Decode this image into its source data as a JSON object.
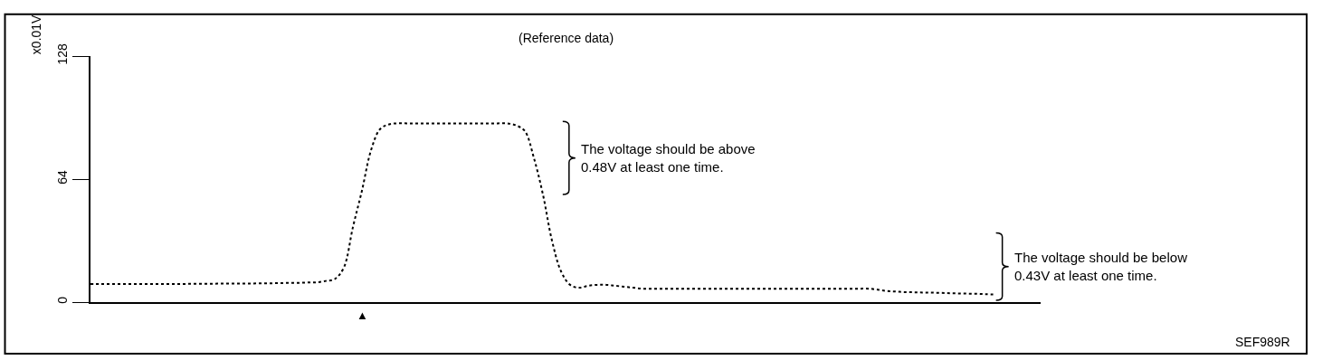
{
  "chart_data": {
    "type": "line",
    "title": "(Reference data)",
    "ylabel": "x0.01V",
    "categories": [
      null,
      null,
      null,
      null,
      null,
      null,
      null,
      null,
      null,
      null,
      null,
      null,
      null,
      null,
      null,
      null,
      null,
      null,
      null,
      null,
      null,
      null,
      null,
      null,
      null,
      null,
      null,
      null,
      null,
      null,
      null,
      null,
      null,
      null,
      null,
      null,
      null,
      null,
      null,
      null,
      null,
      null,
      null,
      null,
      null,
      null,
      null,
      null,
      null,
      null,
      null,
      null,
      null,
      null,
      null,
      null,
      null,
      null,
      null,
      null,
      null,
      null,
      null,
      null,
      null,
      null,
      null,
      null,
      null,
      null,
      null,
      null,
      null,
      null,
      null,
      null,
      null,
      null,
      null,
      null,
      null,
      null,
      null,
      null,
      null,
      null,
      null,
      null,
      null,
      null,
      null,
      null,
      null,
      null,
      null,
      null,
      null,
      null,
      null,
      null,
      null
    ],
    "series": [
      {
        "color": "#000000",
        "values": [
          9.4,
          9.4,
          9.4,
          9.4,
          9.4,
          9.4,
          9.4,
          9.4,
          9.4,
          9.4,
          9.4,
          9.5,
          9.5,
          9.5,
          9.6,
          9.6,
          9.6,
          9.7,
          9.7,
          9.8,
          9.8,
          9.9,
          10,
          10,
          10.2,
          10.3,
          11,
          12,
          18,
          39,
          58,
          79,
          90,
          92.5,
          93,
          93,
          93,
          93,
          93,
          93,
          93,
          93,
          93,
          93,
          93,
          93,
          93,
          92,
          89,
          75,
          56,
          32,
          16,
          9,
          7.5,
          8.5,
          9,
          9,
          8.5,
          8,
          7.5,
          7,
          7,
          7,
          7,
          7,
          7,
          7,
          7,
          7,
          7,
          7,
          7,
          7,
          7,
          7,
          7,
          7,
          7,
          7,
          7,
          7,
          7,
          7,
          7,
          7,
          7,
          6.5,
          5.8,
          5.5,
          5.2,
          5.1,
          5,
          4.9,
          4.8,
          4.6,
          4.5,
          4.4,
          4.3,
          4.1,
          4
        ]
      }
    ],
    "ylim": [
      0,
      128
    ],
    "yticks": [
      0,
      64,
      128
    ],
    "legend": false,
    "line_style": "dotted",
    "marker": "none",
    "annotations": [
      "The voltage should be above\n0.48V at least one time.",
      "The voltage should be below\n0.43V at least one time.",
      "▲",
      "SEF989R"
    ]
  }
}
